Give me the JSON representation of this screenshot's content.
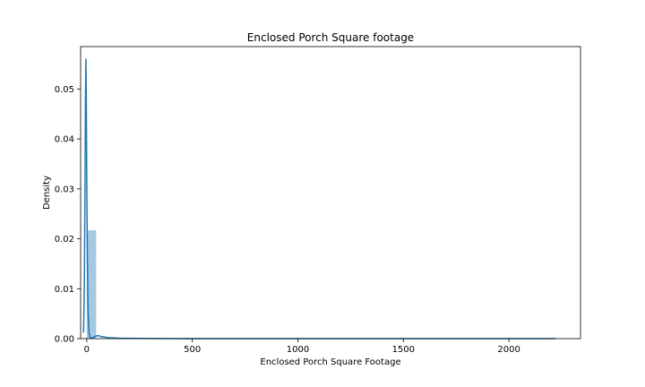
{
  "chart_data": {
    "type": "bar",
    "title": "Enclosed Porch Square footage",
    "xlabel": "Enclosed Porch Square Footage",
    "ylabel": "Density",
    "xlim": [
      -29,
      2339
    ],
    "ylim": [
      0,
      0.0585
    ],
    "xticks": [
      0,
      500,
      1000,
      1500,
      2000
    ],
    "yticks": [
      0.0,
      0.01,
      0.02,
      0.03,
      0.04,
      0.05
    ],
    "ytick_labels": [
      "0.00",
      "0.01",
      "0.02",
      "0.03",
      "0.04",
      "0.05"
    ],
    "grid": false,
    "legend": "none",
    "histogram": {
      "bin_edges": [
        0,
        44.5
      ],
      "densities": [
        0.0217
      ],
      "color": "#1f77b4",
      "alpha": 0.4
    },
    "kde": {
      "color": "#1f77b4",
      "points": [
        [
          -15,
          0.0012
        ],
        [
          -11,
          0.012
        ],
        [
          -8,
          0.032
        ],
        [
          -6,
          0.048
        ],
        [
          -4,
          0.056
        ],
        [
          -2,
          0.048
        ],
        [
          0,
          0.032
        ],
        [
          3,
          0.016
        ],
        [
          6,
          0.006
        ],
        [
          10,
          0.0015
        ],
        [
          15,
          0.0003
        ],
        [
          22,
          0.0001
        ],
        [
          30,
          0.00015
        ],
        [
          40,
          0.0005
        ],
        [
          55,
          0.0006
        ],
        [
          70,
          0.0004
        ],
        [
          100,
          0.0002
        ],
        [
          150,
          0.0001
        ],
        [
          200,
          6e-05
        ],
        [
          300,
          3e-05
        ],
        [
          500,
          1e-05
        ],
        [
          1000,
          5e-06
        ],
        [
          1500,
          3e-06
        ],
        [
          2000,
          2e-06
        ],
        [
          2220,
          1e-06
        ]
      ]
    }
  }
}
